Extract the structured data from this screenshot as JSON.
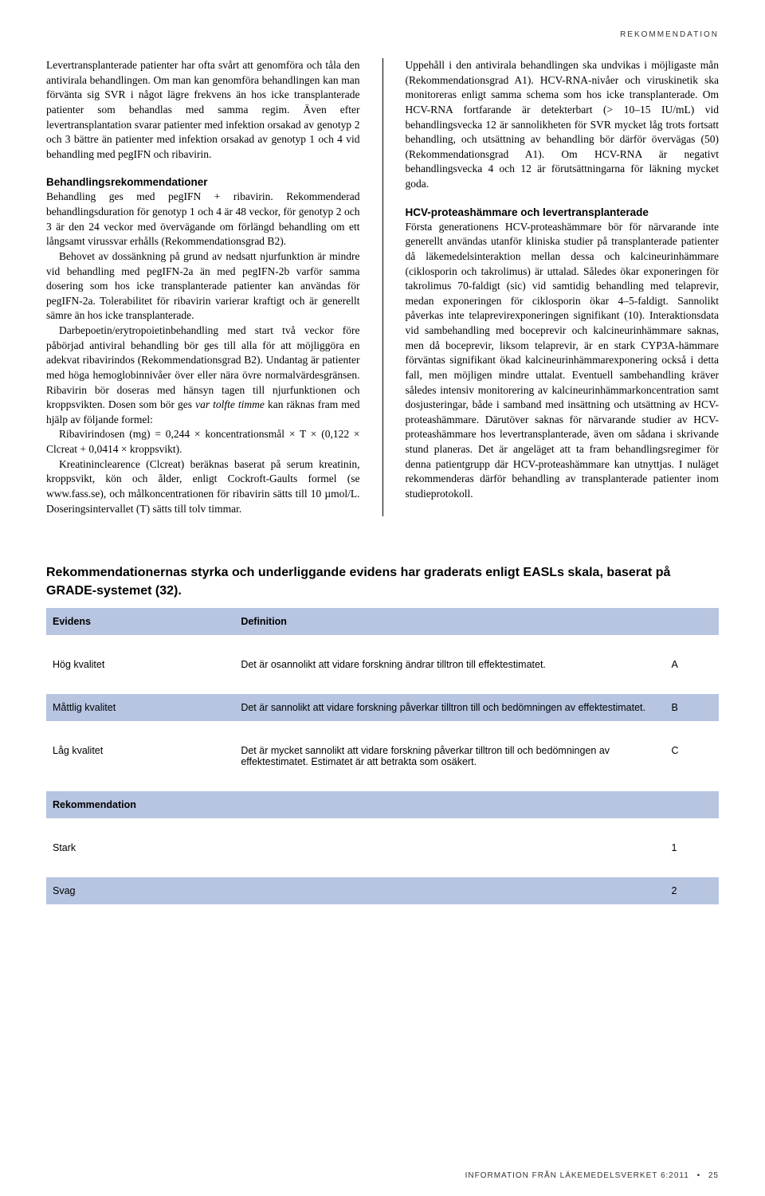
{
  "header_tag": "REKOMMENDATION",
  "left_column": {
    "p1": "Levertransplanterade patienter har ofta svårt att genomföra och tåla den antivirala behandlingen. Om man kan genomföra behandlingen kan man förvänta sig SVR i något lägre frekvens än hos icke transplanterade patienter som behandlas med samma regim. Även efter levertransplantation svarar patienter med infektion orsakad av genotyp 2 och 3 bättre än patienter med infektion orsakad av genotyp 1 och 4 vid behandling med pegIFN och ribavirin.",
    "h1": "Behandlingsrekommendationer",
    "p2a": "Behandling ges med pegIFN + ribavirin. Rekommenderad behandlingsduration för genotyp 1 och 4 är 48 veckor, för genotyp 2 och 3 är den 24 veckor med övervägande om förlängd behandling om ett långsamt virussvar erhålls (Rekommendationsgrad B2).",
    "p2b": "Behovet av dossänkning på grund av nedsatt njurfunktion är mindre vid behandling med pegIFN-2a än med pegIFN-2b varför samma dosering som hos icke transplanterade patienter kan användas för pegIFN-2a. Tolerabilitet för ribavirin varierar kraftigt och är generellt sämre än hos icke transplanterade.",
    "p2c": "Darbepoetin/erytropoietinbehandling med start två veckor före påbörjad antiviral behandling bör ges till alla för att möjliggöra en adekvat ribavirindos (Rekommendationsgrad B2). Undantag är patienter med höga hemoglobinnivåer över eller nära övre normalvärdesgränsen. Ribavirin bör doseras med hänsyn tagen till njurfunktionen och kroppsvikten. Dosen som bör ges ",
    "p2c_italic": "var tolfte timme",
    "p2c_cont": " kan räknas fram med hjälp av följande formel:",
    "p2d": "Ribavirindosen (mg) = 0,244 × koncentrationsmål × T × (0,122 × Clcreat + 0,0414 × kroppsvikt).",
    "p2e": "Kreatininclearence (Clcreat) beräknas baserat på serum kreatinin, kroppsvikt, kön och ålder, enligt Cockroft-Gaults formel (se www.fass.se), och målkoncentrationen för ribavirin sätts till 10 µmol/L. Doseringsintervallet (T) sätts till tolv timmar."
  },
  "right_column": {
    "p1": "Uppehåll i den antivirala behandlingen ska undvikas i möjligaste mån (Rekommendationsgrad A1). HCV-RNA-nivåer och viruskinetik ska monitoreras enligt samma schema som hos icke transplanterade. Om HCV-RNA fortfarande är detekterbart (> 10–15 IU/mL) vid behandlingsvecka 12 är sannolikheten för SVR mycket låg trots fortsatt behandling, och utsättning av behandling bör därför övervägas (50) (Rekommendationsgrad A1). Om HCV-RNA är negativt behandlingsvecka 4 och 12 är förutsättningarna för läkning mycket goda.",
    "h1": "HCV-proteashämmare och levertransplanterade",
    "p2": "Första generationens HCV-proteashämmare bör för närvarande inte generellt användas utanför kliniska studier på transplanterade patienter då läkemedelsinteraktion mellan dessa och kalcineurinhämmare (ciklosporin och takrolimus) är uttalad. Således ökar exponeringen för takrolimus 70-faldigt (sic) vid samtidig behandling med telaprevir, medan exponeringen för ciklosporin ökar 4–5-faldigt. Sannolikt påverkas inte telaprevirexponeringen signifikant (10). Interaktionsdata vid sambehandling med boceprevir och kalcineurinhämmare saknas, men då boceprevir, liksom telaprevir, är en stark CYP3A-hämmare förväntas signifikant ökad kalcineurinhämmarexponering också i detta fall, men möjligen mindre uttalat. Eventuell sambehandling kräver således intensiv monitorering av kalcineurinhämmarkoncentration samt dosjusteringar, både i samband med insättning och utsättning av HCV-proteashämmare. Därutöver saknas för närvarande studier av HCV-proteashämmare hos levertransplanterade, även om sådana i skrivande stund planeras. Det är angeläget att ta fram behandlingsregimer för denna patientgrupp där HCV-proteashämmare kan utnyttjas. I nuläget rekommenderas därför behandling av transplanterade patienter inom studieprotokoll."
  },
  "table": {
    "title": "Rekommendationernas styrka och underliggande evidens har graderats enligt EASLs skala, baserat på GRADE-systemet (32).",
    "header": {
      "evidens": "Evidens",
      "definition": "Definition"
    },
    "rows": [
      {
        "label": "Hög kvalitet",
        "def": "Det är osannolikt att vidare forskning ändrar tilltron till effektestimatet.",
        "grade": "A",
        "cls": "row-data"
      },
      {
        "label": "Måttlig kvalitet",
        "def": "Det är sannolikt att vidare forskning påverkar tilltron till och bedömningen av effektestimatet.",
        "grade": "B",
        "cls": "row-data2"
      },
      {
        "label": "Låg kvalitet",
        "def": "Det är mycket sannolikt att vidare forskning påverkar tilltron till och bedömningen av effektestimatet. Estimatet är att betrakta som osäkert.",
        "grade": "C",
        "cls": "row-data"
      }
    ],
    "rekommendation_header": "Rekommendation",
    "rek_rows": [
      {
        "label": "Stark",
        "grade": "1",
        "cls": "row-data"
      },
      {
        "label": "Svag",
        "grade": "2",
        "cls": "row-data2"
      }
    ]
  },
  "footer": {
    "text": "INFORMATION FRÅN LÄKEMEDELSVERKET 6:2011",
    "page": "25"
  }
}
